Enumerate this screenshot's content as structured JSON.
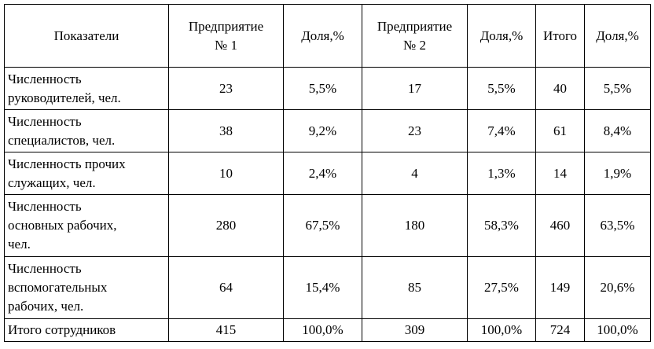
{
  "table": {
    "headers": [
      "Показатели",
      "Предприятие\n№ 1",
      "Доля,%",
      "Предприятие\n№ 2",
      "Доля,%",
      "Итого",
      "Доля,%"
    ],
    "rows": [
      {
        "label": "Численность\nруководителей, чел.",
        "cells": [
          "23",
          "5,5%",
          "17",
          "5,5%",
          "40",
          "5,5%"
        ]
      },
      {
        "label": "Численность\nспециалистов, чел.",
        "cells": [
          "38",
          "9,2%",
          "23",
          "7,4%",
          "61",
          "8,4%"
        ]
      },
      {
        "label": "Численность прочих\nслужащих, чел.",
        "cells": [
          "10",
          "2,4%",
          "4",
          "1,3%",
          "14",
          "1,9%"
        ]
      },
      {
        "label": "Численность\nосновных рабочих,\nчел.",
        "cells": [
          "280",
          "67,5%",
          "180",
          "58,3%",
          "460",
          "63,5%"
        ]
      },
      {
        "label": "Численность\nвспомогательных\nрабочих, чел.",
        "cells": [
          "64",
          "15,4%",
          "85",
          "27,5%",
          "149",
          "20,6%"
        ]
      },
      {
        "label": "Итого сотрудников",
        "cells": [
          "415",
          "100,0%",
          "309",
          "100,0%",
          "724",
          "100,0%"
        ]
      }
    ]
  }
}
